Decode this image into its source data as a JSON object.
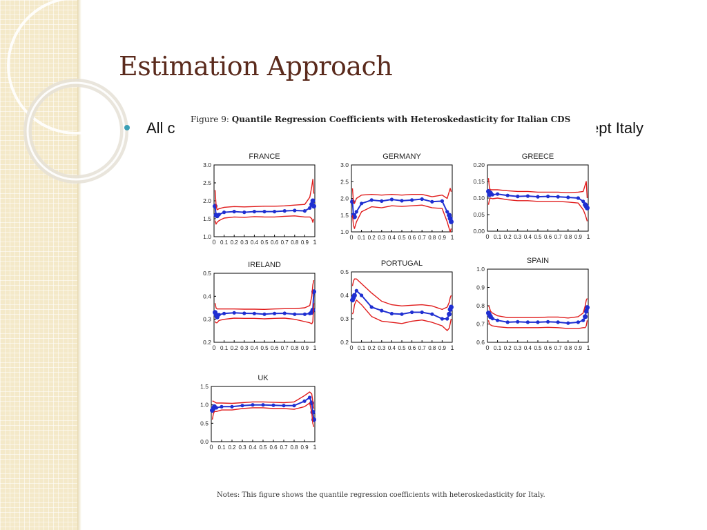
{
  "slide": {
    "title": "Estimation Approach",
    "bullet": "All countries except Italy",
    "bullet_visible_left": "All c",
    "bullet_visible_right": "ept Italy"
  },
  "figure": {
    "caption_prefix": "Figure 9:",
    "caption_title": "Quantile Regression Coefficients with Heteroskedasticity for Italian CDS",
    "notes": "Notes: This figure shows the quantile regression coefficients with heteroskedasticity for Italy."
  },
  "colors": {
    "coef": "#1f2fd1",
    "band": "#e01b1b",
    "title": "#5a2a1c",
    "bullet": "#3a9fb5"
  },
  "chart_data": [
    {
      "type": "line",
      "title": "FRANCE",
      "xlim": [
        0,
        1
      ],
      "ylim": [
        1.0,
        3.0
      ],
      "yticks": [
        "1.0",
        "1.5",
        "2.0",
        "2.5",
        "3.0"
      ],
      "xticks": [
        "0",
        "0.1",
        "0.2",
        "0.3",
        "0.4",
        "0.5",
        "0.6",
        "0.7",
        "0.8",
        "0.9",
        "1"
      ],
      "x": [
        0.01,
        0.02,
        0.03,
        0.05,
        0.1,
        0.2,
        0.3,
        0.4,
        0.5,
        0.6,
        0.7,
        0.8,
        0.9,
        0.95,
        0.97,
        0.98,
        0.99
      ],
      "series": [
        {
          "role": "coefficient",
          "values": [
            1.85,
            1.6,
            1.58,
            1.62,
            1.68,
            1.7,
            1.68,
            1.7,
            1.7,
            1.7,
            1.72,
            1.73,
            1.72,
            1.8,
            1.9,
            2.0,
            1.85
          ]
        },
        {
          "role": "upper",
          "values": [
            2.3,
            1.9,
            1.75,
            1.78,
            1.82,
            1.84,
            1.83,
            1.84,
            1.85,
            1.85,
            1.86,
            1.88,
            1.9,
            2.1,
            2.4,
            2.6,
            2.2
          ]
        },
        {
          "role": "lower",
          "values": [
            1.45,
            1.35,
            1.4,
            1.45,
            1.52,
            1.55,
            1.54,
            1.56,
            1.55,
            1.55,
            1.57,
            1.58,
            1.55,
            1.55,
            1.5,
            1.4,
            1.5
          ]
        }
      ]
    },
    {
      "type": "line",
      "title": "GERMANY",
      "xlim": [
        0,
        1
      ],
      "ylim": [
        1.0,
        3.0
      ],
      "yticks": [
        "1.0",
        "1.5",
        "2.0",
        "2.5",
        "3.0"
      ],
      "xticks": [
        "0",
        "0.1",
        "0.2",
        "0.3",
        "0.4",
        "0.5",
        "0.6",
        "0.7",
        "0.8",
        "0.9",
        "1"
      ],
      "x": [
        0.01,
        0.02,
        0.03,
        0.05,
        0.1,
        0.2,
        0.3,
        0.4,
        0.5,
        0.6,
        0.7,
        0.8,
        0.9,
        0.95,
        0.97,
        0.98,
        0.99
      ],
      "series": [
        {
          "role": "coefficient",
          "values": [
            1.9,
            1.5,
            1.45,
            1.6,
            1.85,
            1.95,
            1.92,
            1.97,
            1.93,
            1.95,
            1.98,
            1.9,
            1.92,
            1.6,
            1.5,
            1.4,
            1.3
          ]
        },
        {
          "role": "upper",
          "values": [
            2.3,
            1.9,
            1.85,
            2.0,
            2.1,
            2.12,
            2.1,
            2.12,
            2.1,
            2.12,
            2.12,
            2.05,
            2.1,
            2.0,
            2.2,
            2.3,
            2.2
          ]
        },
        {
          "role": "lower",
          "values": [
            1.5,
            1.2,
            1.1,
            1.3,
            1.6,
            1.75,
            1.72,
            1.78,
            1.76,
            1.78,
            1.8,
            1.72,
            1.7,
            1.3,
            1.1,
            1.0,
            1.1
          ]
        }
      ]
    },
    {
      "type": "line",
      "title": "GREECE",
      "xlim": [
        0,
        1
      ],
      "ylim": [
        0.0,
        0.2
      ],
      "yticks": [
        "0.00",
        "0.05",
        "0.10",
        "0.15",
        "0.20"
      ],
      "xticks": [
        "0",
        "0.1",
        "0.2",
        "0.3",
        "0.4",
        "0.5",
        "0.6",
        "0.7",
        "0.8",
        "0.9",
        "1"
      ],
      "x": [
        0.01,
        0.02,
        0.03,
        0.05,
        0.1,
        0.2,
        0.3,
        0.4,
        0.5,
        0.6,
        0.7,
        0.8,
        0.9,
        0.95,
        0.97,
        0.98,
        0.99
      ],
      "series": [
        {
          "role": "coefficient",
          "values": [
            0.12,
            0.11,
            0.115,
            0.11,
            0.112,
            0.108,
            0.105,
            0.106,
            0.104,
            0.105,
            0.104,
            0.102,
            0.1,
            0.09,
            0.08,
            0.075,
            0.07
          ]
        },
        {
          "role": "upper",
          "values": [
            0.16,
            0.13,
            0.125,
            0.125,
            0.125,
            0.122,
            0.12,
            0.12,
            0.118,
            0.118,
            0.118,
            0.116,
            0.118,
            0.12,
            0.14,
            0.15,
            0.1
          ]
        },
        {
          "role": "lower",
          "values": [
            0.08,
            0.095,
            0.1,
            0.098,
            0.1,
            0.095,
            0.092,
            0.092,
            0.09,
            0.09,
            0.09,
            0.088,
            0.085,
            0.065,
            0.05,
            0.04,
            0.03
          ]
        }
      ]
    },
    {
      "type": "line",
      "title": "IRELAND",
      "xlim": [
        0,
        1
      ],
      "ylim": [
        0.2,
        0.5
      ],
      "yticks": [
        "0.2",
        "0.3",
        "0.4",
        "0.5"
      ],
      "xticks": [
        "0",
        "0.1",
        "0.2",
        "0.3",
        "0.4",
        "0.5",
        "0.6",
        "0.7",
        "0.8",
        "0.9",
        "1"
      ],
      "x": [
        0.01,
        0.02,
        0.03,
        0.05,
        0.1,
        0.2,
        0.3,
        0.4,
        0.5,
        0.6,
        0.7,
        0.8,
        0.9,
        0.95,
        0.97,
        0.98,
        0.99
      ],
      "series": [
        {
          "role": "coefficient",
          "values": [
            0.33,
            0.32,
            0.31,
            0.32,
            0.325,
            0.328,
            0.326,
            0.325,
            0.322,
            0.325,
            0.326,
            0.322,
            0.322,
            0.325,
            0.33,
            0.34,
            0.42
          ]
        },
        {
          "role": "upper",
          "values": [
            0.37,
            0.35,
            0.345,
            0.345,
            0.345,
            0.345,
            0.344,
            0.344,
            0.343,
            0.345,
            0.346,
            0.346,
            0.35,
            0.36,
            0.4,
            0.45,
            0.47
          ]
        },
        {
          "role": "lower",
          "values": [
            0.29,
            0.285,
            0.285,
            0.295,
            0.3,
            0.305,
            0.304,
            0.304,
            0.302,
            0.304,
            0.305,
            0.3,
            0.29,
            0.285,
            0.28,
            0.29,
            0.37
          ]
        }
      ]
    },
    {
      "type": "line",
      "title": "PORTUGAL",
      "xlim": [
        0,
        1
      ],
      "ylim": [
        0.2,
        0.5
      ],
      "yticks": [
        "0.2",
        "0.3",
        "0.4",
        "0.5"
      ],
      "xticks": [
        "0",
        "0.1",
        "0.2",
        "0.3",
        "0.4",
        "0.5",
        "0.6",
        "0.7",
        "0.8",
        "0.9",
        "1"
      ],
      "x": [
        0.01,
        0.02,
        0.03,
        0.05,
        0.1,
        0.2,
        0.3,
        0.4,
        0.5,
        0.6,
        0.7,
        0.8,
        0.9,
        0.95,
        0.97,
        0.98,
        0.99
      ],
      "series": [
        {
          "role": "coefficient",
          "values": [
            0.38,
            0.39,
            0.4,
            0.42,
            0.4,
            0.35,
            0.335,
            0.322,
            0.32,
            0.328,
            0.328,
            0.32,
            0.3,
            0.3,
            0.32,
            0.34,
            0.35
          ]
        },
        {
          "role": "upper",
          "values": [
            0.44,
            0.46,
            0.47,
            0.47,
            0.45,
            0.41,
            0.375,
            0.36,
            0.355,
            0.358,
            0.36,
            0.355,
            0.34,
            0.35,
            0.37,
            0.39,
            0.4
          ]
        },
        {
          "role": "lower",
          "values": [
            0.32,
            0.33,
            0.36,
            0.38,
            0.36,
            0.31,
            0.29,
            0.285,
            0.28,
            0.29,
            0.295,
            0.285,
            0.27,
            0.25,
            0.26,
            0.28,
            0.3
          ]
        }
      ]
    },
    {
      "type": "line",
      "title": "SPAIN",
      "xlim": [
        0,
        1
      ],
      "ylim": [
        0.6,
        1.0
      ],
      "yticks": [
        "0.6",
        "0.7",
        "0.8",
        "0.9",
        "1.0"
      ],
      "xticks": [
        "0",
        "0.1",
        "0.2",
        "0.3",
        "0.4",
        "0.5",
        "0.6",
        "0.7",
        "0.8",
        "0.9",
        "1"
      ],
      "x": [
        0.01,
        0.02,
        0.03,
        0.05,
        0.1,
        0.2,
        0.3,
        0.4,
        0.5,
        0.6,
        0.7,
        0.8,
        0.9,
        0.95,
        0.97,
        0.98,
        0.99
      ],
      "series": [
        {
          "role": "coefficient",
          "values": [
            0.76,
            0.75,
            0.74,
            0.73,
            0.72,
            0.71,
            0.712,
            0.71,
            0.71,
            0.712,
            0.71,
            0.705,
            0.71,
            0.72,
            0.74,
            0.77,
            0.79
          ]
        },
        {
          "role": "upper",
          "values": [
            0.8,
            0.79,
            0.77,
            0.76,
            0.745,
            0.735,
            0.735,
            0.735,
            0.735,
            0.738,
            0.738,
            0.733,
            0.74,
            0.76,
            0.8,
            0.83,
            0.84
          ]
        },
        {
          "role": "lower",
          "values": [
            0.72,
            0.7,
            0.695,
            0.69,
            0.685,
            0.68,
            0.68,
            0.68,
            0.68,
            0.682,
            0.68,
            0.675,
            0.675,
            0.68,
            0.68,
            0.69,
            0.72
          ]
        }
      ]
    },
    {
      "type": "line",
      "title": "UK",
      "xlim": [
        0,
        1
      ],
      "ylim": [
        0.0,
        1.5
      ],
      "yticks": [
        "0.0",
        "0.5",
        "1.0",
        "1.5"
      ],
      "xticks": [
        "0",
        "0.1",
        "0.2",
        "0.3",
        "0.4",
        "0.5",
        "0.6",
        "0.7",
        "0.8",
        "0.9",
        "1"
      ],
      "x": [
        0.01,
        0.02,
        0.03,
        0.05,
        0.1,
        0.2,
        0.3,
        0.4,
        0.5,
        0.6,
        0.7,
        0.8,
        0.9,
        0.95,
        0.97,
        0.98,
        0.99
      ],
      "series": [
        {
          "role": "coefficient",
          "values": [
            0.85,
            0.9,
            0.95,
            0.92,
            0.95,
            0.95,
            0.98,
            1.0,
            1.0,
            0.99,
            0.98,
            0.98,
            1.1,
            1.2,
            1.05,
            0.8,
            0.6
          ]
        },
        {
          "role": "upper",
          "values": [
            1.1,
            1.1,
            1.08,
            1.05,
            1.05,
            1.04,
            1.06,
            1.08,
            1.08,
            1.07,
            1.06,
            1.08,
            1.25,
            1.35,
            1.3,
            1.1,
            0.9
          ]
        },
        {
          "role": "lower",
          "values": [
            0.6,
            0.75,
            0.82,
            0.82,
            0.86,
            0.86,
            0.9,
            0.92,
            0.92,
            0.9,
            0.9,
            0.88,
            0.95,
            1.05,
            0.8,
            0.5,
            0.4
          ]
        }
      ]
    }
  ]
}
